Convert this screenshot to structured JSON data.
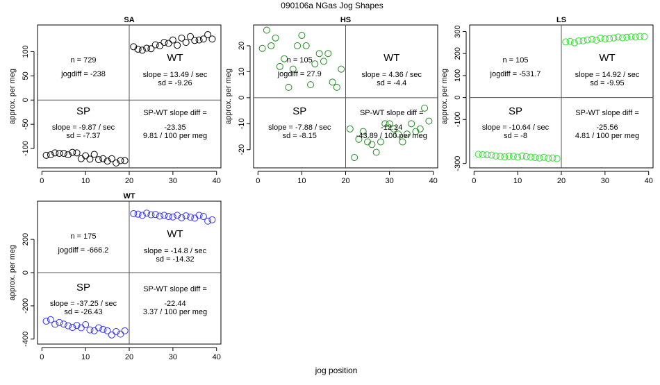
{
  "figure": {
    "title": "090106a    NGas Jog Shapes",
    "xlabel": "jog position"
  },
  "chart_data": [
    {
      "type": "scatter",
      "title": "SA",
      "ylabel": "approx. per meg",
      "color": "#000000",
      "xlim": [
        -1,
        41
      ],
      "ylim": [
        -140,
        155
      ],
      "xticks": [
        "0",
        "10",
        "20",
        "30",
        "40"
      ],
      "yticks": [
        "-100",
        "-50",
        "0",
        "50",
        "100"
      ],
      "x": [
        1,
        2,
        3,
        4,
        5,
        6,
        7,
        8,
        9,
        10,
        11,
        12,
        13,
        14,
        15,
        16,
        17,
        18,
        19,
        21,
        22,
        23,
        24,
        25,
        26,
        27,
        28,
        29,
        30,
        31,
        32,
        33,
        34,
        35,
        36,
        37,
        38,
        39
      ],
      "y": [
        -114,
        -113,
        -109,
        -110,
        -110,
        -113,
        -108,
        -109,
        -121,
        -115,
        -122,
        -112,
        -123,
        -121,
        -126,
        -121,
        -130,
        -125,
        -125,
        110,
        105,
        103,
        107,
        106,
        114,
        112,
        119,
        117,
        124,
        113,
        128,
        119,
        131,
        123,
        124,
        126,
        135,
        126
      ],
      "labels": {
        "n": "n = 729",
        "jogdiff": "jogdiff = -238",
        "wt_label": "WT",
        "wt_slope": "slope = 13.49 / sec",
        "wt_sd": "sd = -9.26",
        "sp_label": "SP",
        "sp_slope": "slope = -9.87 / sec",
        "sp_sd": "sd = -7.37",
        "diff_title": "SP-WT slope diff =",
        "diff_value": "-23.35",
        "diff_per": "9.81 / 100 per meg"
      }
    },
    {
      "type": "scatter",
      "title": "HS",
      "ylabel": "approx. per meg",
      "color": "#228B22",
      "xlim": [
        -1,
        41
      ],
      "ylim": [
        -27,
        28
      ],
      "xticks": [
        "0",
        "10",
        "20",
        "30",
        "40"
      ],
      "yticks": [
        "-20",
        "-10",
        "0",
        "10",
        "20"
      ],
      "x": [
        1,
        2,
        3,
        4,
        5,
        6,
        7,
        8,
        9,
        10,
        11,
        12,
        13,
        14,
        15,
        16,
        17,
        18,
        19,
        21,
        22,
        23,
        24,
        25,
        26,
        27,
        28,
        29,
        30,
        31,
        32,
        33,
        34,
        35,
        36,
        37,
        38,
        39
      ],
      "y": [
        19,
        26,
        20,
        23,
        12,
        15,
        4,
        11,
        20,
        24,
        20,
        5,
        13,
        17,
        14,
        17,
        6,
        4,
        11,
        -12,
        -23,
        -16,
        -13,
        -17,
        -18,
        -21,
        -17,
        -10,
        -10,
        -12,
        -14,
        -17,
        -14,
        -10,
        -13,
        -12,
        -4,
        -9
      ],
      "labels": {
        "n": "n = 105",
        "jogdiff": "jogdiff = 27.9",
        "wt_label": "WT",
        "wt_slope": "slope = 4.36 / sec",
        "wt_sd": "sd = -4.4",
        "sp_label": "SP",
        "sp_slope": "slope = -7.88 / sec",
        "sp_sd": "sd = -8.15",
        "diff_title": "SP-WT slope diff =",
        "diff_value": "-12.24",
        "diff_per": "-43.89 / 100 per meg"
      }
    },
    {
      "type": "scatter",
      "title": "LS",
      "ylabel": "approx. per meg",
      "color": "#33DD33",
      "xlim": [
        -1,
        41
      ],
      "ylim": [
        -320,
        330
      ],
      "xticks": [
        "0",
        "10",
        "20",
        "30",
        "40"
      ],
      "yticks": [
        "-300",
        "-100",
        "0",
        "100",
        "200",
        "300"
      ],
      "x": [
        1,
        2,
        3,
        4,
        5,
        6,
        7,
        8,
        9,
        10,
        11,
        12,
        13,
        14,
        15,
        16,
        17,
        18,
        19,
        21,
        22,
        23,
        24,
        25,
        26,
        27,
        28,
        29,
        30,
        31,
        32,
        33,
        34,
        35,
        36,
        37,
        38,
        39
      ],
      "y": [
        -258,
        -260,
        -261,
        -262,
        -266,
        -268,
        -270,
        -267,
        -267,
        -271,
        -266,
        -269,
        -271,
        -273,
        -275,
        -272,
        -276,
        -275,
        -278,
        253,
        255,
        249,
        258,
        258,
        262,
        265,
        261,
        270,
        267,
        268,
        271,
        275,
        272,
        274,
        276,
        275,
        278,
        277
      ],
      "labels": {
        "n": "n = 105",
        "jogdiff": "jogdiff = -531.7",
        "wt_label": "WT",
        "wt_slope": "slope = 14.92 / sec",
        "wt_sd": "sd = -9.95",
        "sp_label": "SP",
        "sp_slope": "slope = -10.64 / sec",
        "sp_sd": "sd = -8",
        "diff_title": "SP-WT slope diff =",
        "diff_value": "-25.56",
        "diff_per": "4.81 / 100 per meg"
      }
    },
    {
      "type": "scatter",
      "title": "WT",
      "ylabel": "approx. per meg",
      "color": "#3333EE",
      "xlim": [
        -1,
        41
      ],
      "ylim": [
        -430,
        430
      ],
      "xticks": [
        "0",
        "10",
        "20",
        "30",
        "40"
      ],
      "yticks": [
        "-400",
        "-200",
        "0",
        "200"
      ],
      "x": [
        1,
        2,
        3,
        4,
        5,
        6,
        7,
        8,
        9,
        10,
        11,
        12,
        13,
        14,
        15,
        16,
        17,
        18,
        19,
        21,
        22,
        23,
        24,
        25,
        26,
        27,
        28,
        29,
        30,
        31,
        32,
        33,
        34,
        35,
        36,
        37,
        38,
        39
      ],
      "y": [
        -292,
        -283,
        -311,
        -300,
        -310,
        -320,
        -330,
        -318,
        -332,
        -313,
        -345,
        -350,
        -332,
        -342,
        -350,
        -375,
        -355,
        -370,
        -350,
        355,
        352,
        345,
        358,
        348,
        350,
        340,
        345,
        338,
        335,
        345,
        330,
        342,
        334,
        328,
        345,
        338,
        310,
        318
      ],
      "labels": {
        "n": "n = 175",
        "jogdiff": "jogdiff = -666.2",
        "wt_label": "WT",
        "wt_slope": "slope = -14.8 / sec",
        "wt_sd": "sd = -14.32",
        "sp_label": "SP",
        "sp_slope": "slope = -37.25 / sec",
        "sp_sd": "sd = -26.43",
        "diff_title": "SP-WT slope diff =",
        "diff_value": "-22.44",
        "diff_per": "3.37 / 100 per meg"
      }
    }
  ]
}
